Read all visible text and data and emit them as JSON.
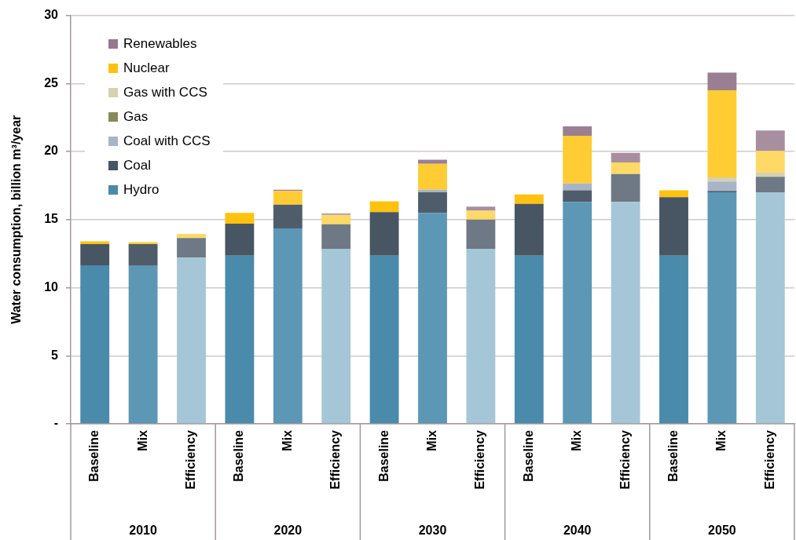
{
  "chart_data": {
    "type": "bar",
    "stacked": true,
    "ylabel": "Water consumption, billion m³/year",
    "categories": [
      "Baseline",
      "Mix",
      "Efficiency",
      "Baseline",
      "Mix",
      "Efficiency",
      "Baseline",
      "Mix",
      "Efficiency",
      "Baseline",
      "Mix",
      "Efficiency",
      "Baseline",
      "Mix",
      "Efficiency"
    ],
    "annotations": [
      "2010",
      "2020",
      "2030",
      "2040",
      "2050"
    ],
    "ylim": [
      0,
      30
    ],
    "yticks": [
      {
        "value": 0,
        "label": "-"
      },
      5,
      10,
      15,
      20,
      25,
      30
    ],
    "grid": "y",
    "legend": "top left",
    "series": [
      {
        "name": "Hydro",
        "color": "#4a8aaa",
        "colors": [
          "#4a8aaa",
          "#5c98b5",
          "#a5c6d6",
          "#4a8aaa",
          "#5c98b5",
          "#a5c6d6",
          "#4a8aaa",
          "#5c98b5",
          "#a5c6d6",
          "#4a8aaa",
          "#5c98b5",
          "#a5c6d6",
          "#4a8aaa",
          "#5c98b5",
          "#a5c6d6"
        ],
        "values": [
          11.65,
          11.6,
          12.2,
          12.35,
          14.35,
          12.85,
          12.35,
          15.5,
          12.85,
          12.35,
          16.3,
          16.3,
          12.35,
          17.0,
          17.0
        ]
      },
      {
        "name": "Coal",
        "color": "#485563",
        "colors": [
          "#485563",
          "#4f5d6b",
          "#6e7985",
          "#485563",
          "#4f5d6b",
          "#6e7985",
          "#485563",
          "#4f5d6b",
          "#6e7985",
          "#485563",
          "#4f5d6b",
          "#6e7985",
          "#485563",
          "#4f5d6b",
          "#6e7985"
        ],
        "values": [
          1.55,
          1.6,
          1.45,
          2.35,
          1.75,
          1.8,
          3.2,
          1.5,
          2.15,
          3.8,
          0.85,
          2.05,
          4.3,
          0.1,
          1.15
        ]
      },
      {
        "name": "Coal with CCS",
        "color": "#a9b4c8",
        "values": [
          null,
          null,
          null,
          null,
          null,
          null,
          null,
          0.2,
          null,
          null,
          0.5,
          null,
          null,
          0.7,
          null
        ]
      },
      {
        "name": "Gas",
        "color": "#868a5a",
        "values": [
          null,
          null,
          null,
          null,
          null,
          null,
          null,
          null,
          null,
          null,
          null,
          null,
          null,
          null,
          null
        ]
      },
      {
        "name": "Gas with CCS",
        "color": "#d4d2b0",
        "values": [
          null,
          null,
          null,
          null,
          null,
          null,
          null,
          null,
          null,
          null,
          null,
          null,
          null,
          0.3,
          0.3
        ]
      },
      {
        "name": "Nuclear",
        "color": "#ffc20e",
        "colors": [
          "#ffc20e",
          "#ffcc33",
          "#ffd966",
          "#ffc20e",
          "#ffcc33",
          "#ffd966",
          "#ffc20e",
          "#ffcc33",
          "#ffd966",
          "#ffc20e",
          "#ffcc33",
          "#ffd966",
          "#ffc20e",
          "#ffcc33",
          "#ffd966"
        ],
        "values": [
          0.2,
          0.15,
          0.3,
          0.8,
          1.0,
          0.7,
          0.8,
          1.9,
          0.65,
          0.7,
          3.5,
          0.85,
          0.5,
          6.4,
          1.6
        ]
      },
      {
        "name": "Renewables",
        "color": "#96788e",
        "colors": [
          "#96788e",
          "#9a7f93",
          "#a88fa0",
          "#96788e",
          "#9a7f93",
          "#a88fa0",
          "#96788e",
          "#9a7f93",
          "#a88fa0",
          "#96788e",
          "#9a7f93",
          "#a88fa0",
          "#96788e",
          "#9a7f93",
          "#a88fa0"
        ],
        "values": [
          null,
          null,
          null,
          null,
          0.1,
          0.1,
          null,
          0.3,
          0.3,
          null,
          0.7,
          0.7,
          null,
          1.3,
          1.5
        ]
      }
    ]
  }
}
